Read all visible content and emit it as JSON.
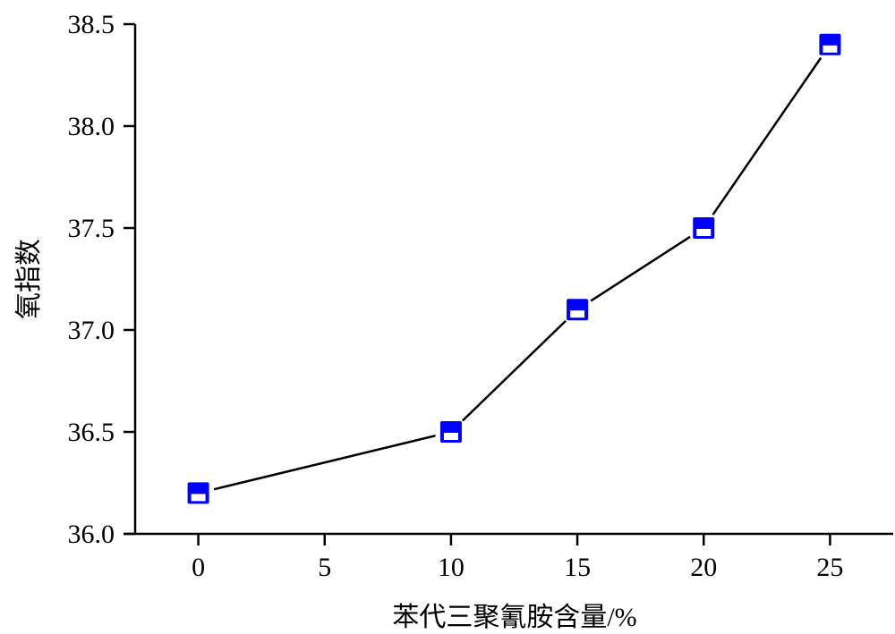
{
  "chart_data": {
    "type": "line",
    "title": "",
    "xlabel": "苯代三聚氰胺含量/%",
    "ylabel": "氧指数",
    "x": [
      0,
      10,
      15,
      20,
      25
    ],
    "y": [
      36.2,
      36.5,
      37.1,
      37.5,
      38.4
    ],
    "xlim": [
      -2.5,
      27.5
    ],
    "ylim": [
      36.0,
      38.5
    ],
    "xticks": [
      "0",
      "5",
      "10",
      "15",
      "20",
      "25"
    ],
    "yticks": [
      "36.0",
      "36.5",
      "37.0",
      "37.5",
      "38.0",
      "38.5"
    ],
    "grid": false,
    "legend": "none",
    "marker": "square-half-filled",
    "colors": {
      "marker": "#0000ff",
      "line": "#000000",
      "axis": "#000000"
    }
  }
}
